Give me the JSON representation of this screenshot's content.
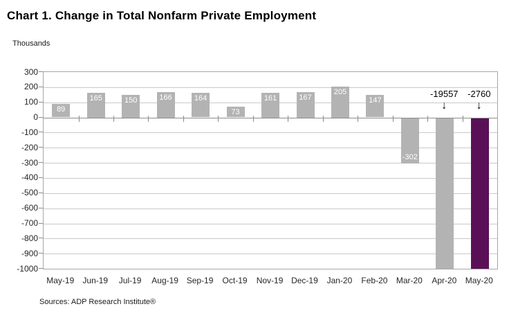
{
  "header": {
    "title": "Chart 1. Change in Total Nonfarm Private Employment"
  },
  "chart_data": {
    "type": "bar",
    "title": "Chart 1. Change in Total Nonfarm Private Employment",
    "ylabel": "Thousands",
    "xlabel": "",
    "categories": [
      "May-19",
      "Jun-19",
      "Jul-19",
      "Aug-19",
      "Sep-19",
      "Oct-19",
      "Nov-19",
      "Dec-19",
      "Jan-20",
      "Feb-20",
      "Mar-20",
      "Apr-20",
      "May-20"
    ],
    "values": [
      89,
      165,
      150,
      166,
      164,
      73,
      161,
      167,
      205,
      147,
      -302,
      -19557,
      -2760
    ],
    "bar_labels": [
      "89",
      "165",
      "150",
      "166",
      "164",
      "73",
      "161",
      "167",
      "205",
      "147",
      "-302",
      "-19557",
      "-2760"
    ],
    "ylim": [
      -1000,
      300
    ],
    "ytick_step": 100,
    "grid": true,
    "legend": "none",
    "highlight_index": 12,
    "clipped_annotations": [
      {
        "index": 11,
        "label": "-19557",
        "arrow": "↓"
      },
      {
        "index": 12,
        "label": "-2760",
        "arrow": "↓"
      }
    ],
    "colors": {
      "bar_default": "#b3b3b3",
      "bar_highlight": "#5a1057",
      "bar_label_text": "#ffffff",
      "gridline": "#c9c9c9",
      "axis": "#8c8c8c",
      "border": "#a6a6a6",
      "text": "#262626"
    }
  },
  "footer": {
    "source": "Sources: ADP Research Institute®"
  }
}
